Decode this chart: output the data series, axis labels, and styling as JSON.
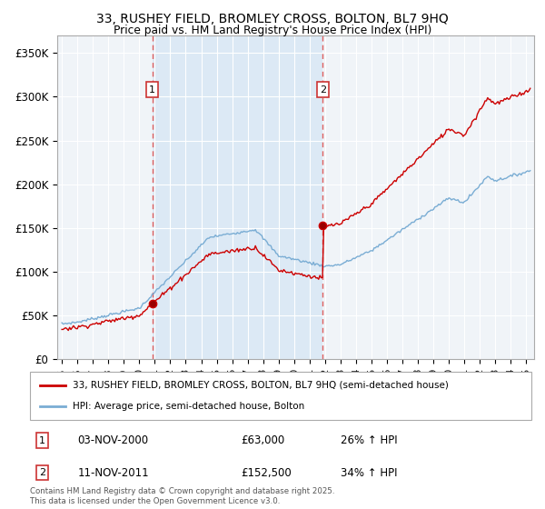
{
  "title_line1": "33, RUSHEY FIELD, BROMLEY CROSS, BOLTON, BL7 9HQ",
  "title_line2": "Price paid vs. HM Land Registry's House Price Index (HPI)",
  "ylabel_ticks": [
    "£0",
    "£50K",
    "£100K",
    "£150K",
    "£200K",
    "£250K",
    "£300K",
    "£350K"
  ],
  "ytick_values": [
    0,
    50000,
    100000,
    150000,
    200000,
    250000,
    300000,
    350000
  ],
  "ylim": [
    0,
    370000
  ],
  "xlim_start": 1994.7,
  "xlim_end": 2025.5,
  "sale1_year": 2000.84,
  "sale1_price": 63000,
  "sale2_year": 2011.86,
  "sale2_price": 152500,
  "legend_label_red": "33, RUSHEY FIELD, BROMLEY CROSS, BOLTON, BL7 9HQ (semi-detached house)",
  "legend_label_blue": "HPI: Average price, semi-detached house, Bolton",
  "annotation1_label": "1",
  "annotation1_date": "03-NOV-2000",
  "annotation1_price": "£63,000",
  "annotation1_hpi": "26% ↑ HPI",
  "annotation2_label": "2",
  "annotation2_date": "11-NOV-2011",
  "annotation2_price": "£152,500",
  "annotation2_hpi": "34% ↑ HPI",
  "footer": "Contains HM Land Registry data © Crown copyright and database right 2025.\nThis data is licensed under the Open Government Licence v3.0.",
  "red_color": "#cc0000",
  "blue_color": "#7aadd4",
  "shade_color": "#dce9f5",
  "bg_color": "#f0f4f8",
  "grid_color": "#ffffff",
  "dashed_color": "#e06060"
}
